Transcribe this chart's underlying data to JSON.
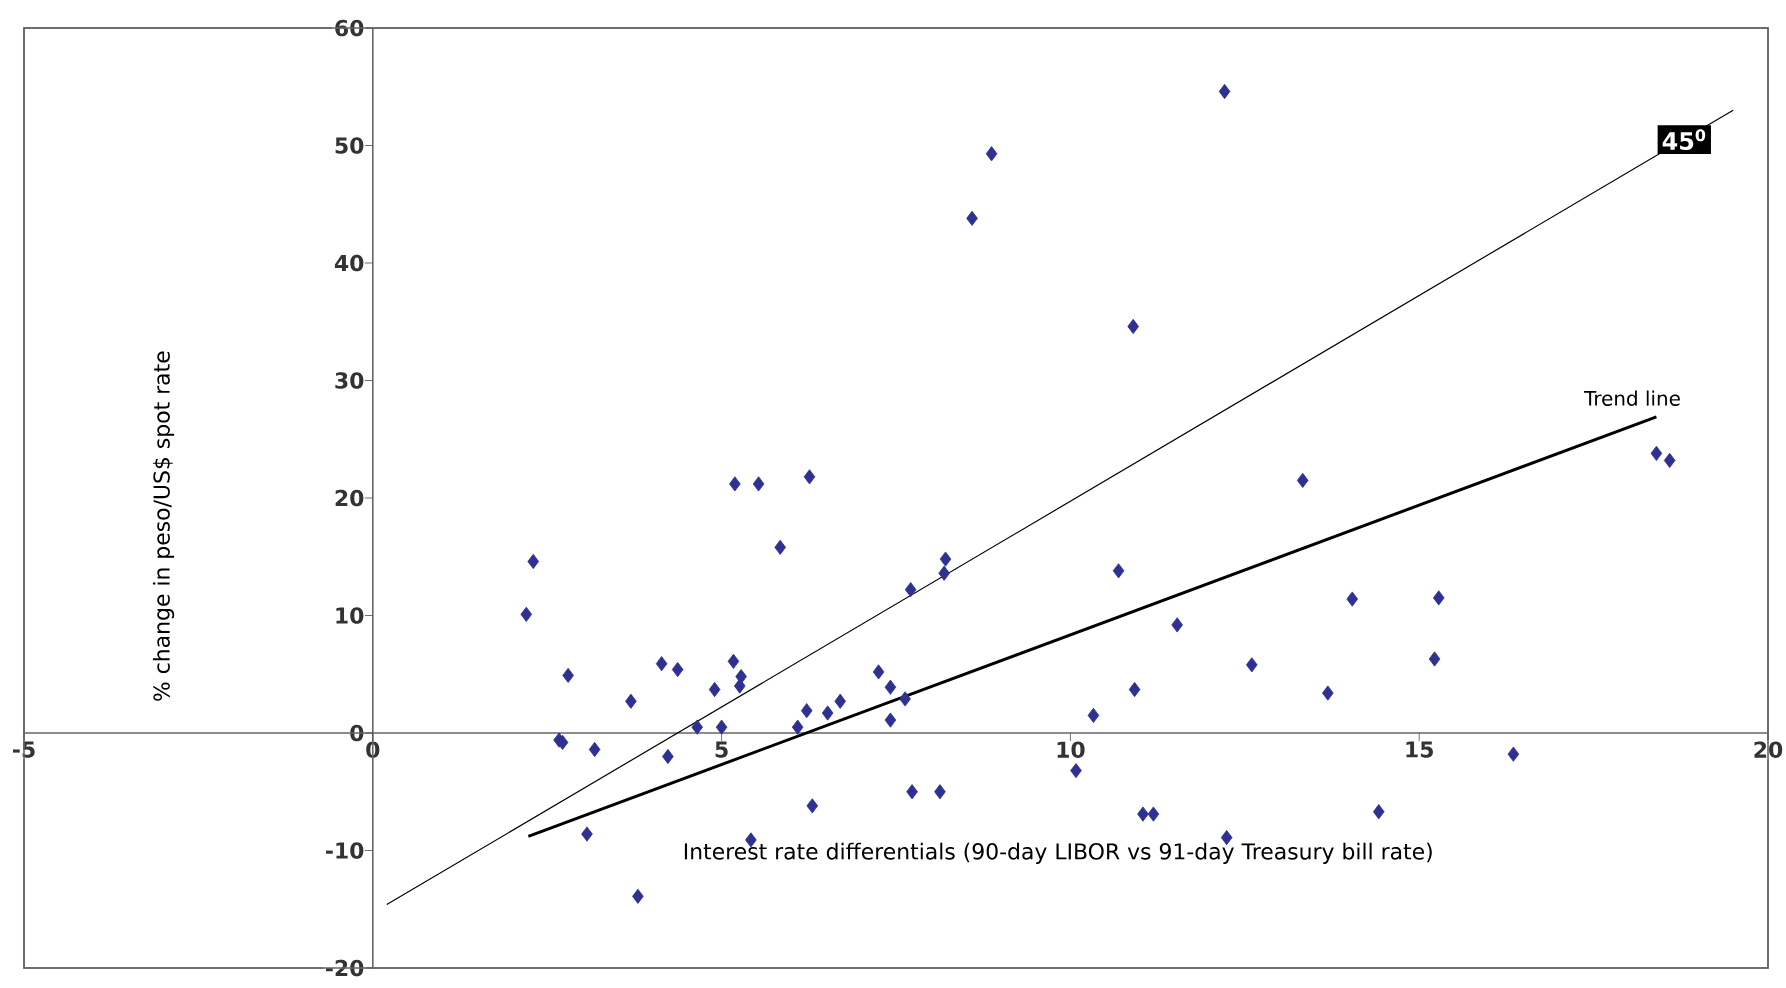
{
  "chart_data": {
    "type": "scatter",
    "xlabel": "Interest rate differentials (90-day LIBOR vs 91-day Treasury bill rate)",
    "ylabel": "% change in peso/US$ spot rate",
    "xlim": [
      -5,
      20
    ],
    "ylim": [
      -20,
      60
    ],
    "xticks": [
      -5,
      0,
      5,
      10,
      15,
      20
    ],
    "yticks": [
      -20,
      -10,
      0,
      10,
      20,
      30,
      40,
      50,
      60
    ],
    "grid": false,
    "series": [
      {
        "marker": "diamond",
        "color": "#2e3192",
        "x": [
          2.3,
          2.2,
          2.8,
          2.67,
          2.72,
          3.18,
          3.07,
          3.7,
          3.8,
          4.14,
          4.37,
          4.23,
          4.65,
          4.9,
          5.0,
          5.19,
          5.53,
          6.26,
          5.84,
          5.17,
          5.28,
          5.26,
          5.42,
          6.3,
          6.09,
          6.22,
          6.52,
          6.7,
          7.25,
          7.42,
          7.63,
          7.42,
          7.71,
          8.21,
          8.19,
          7.73,
          8.13,
          10.08,
          12.21,
          8.87,
          8.59,
          10.9,
          18.4,
          18.59,
          13.33,
          10.69,
          11.53,
          14.04,
          15.28,
          15.22,
          12.6,
          10.92,
          13.69,
          10.33,
          16.35,
          11.04,
          11.19,
          14.42,
          12.24
        ],
        "values": [
          14.6,
          10.1,
          4.9,
          -0.6,
          -0.8,
          -1.4,
          -8.6,
          2.7,
          -13.9,
          5.9,
          5.4,
          -2.0,
          0.5,
          3.7,
          0.5,
          21.2,
          21.2,
          21.8,
          15.8,
          6.1,
          4.8,
          4.0,
          -9.1,
          -6.2,
          0.5,
          1.9,
          1.7,
          2.7,
          5.2,
          3.9,
          2.9,
          1.1,
          12.2,
          14.8,
          13.6,
          -5.0,
          -5.0,
          -3.2,
          54.6,
          49.3,
          43.8,
          34.6,
          23.8,
          23.2,
          21.5,
          13.8,
          9.2,
          11.4,
          11.5,
          6.3,
          5.8,
          3.7,
          3.4,
          1.5,
          -1.8,
          -6.9,
          -6.9,
          -6.7,
          -8.9
        ]
      },
      {
        "type": "line",
        "color": "#000000",
        "x": [
          2.23,
          18.4
        ],
        "values": [
          -8.8,
          26.9
        ]
      },
      {
        "type": "line",
        "color": "#000000",
        "x": [
          0.2,
          19.5
        ],
        "values": [
          -14.6,
          53
        ]
      }
    ],
    "annotations": [
      {
        "text": "Trend line",
        "x": 18.4,
        "y": 26.9
      },
      {
        "text": "45$^{0}$",
        "x": 18.8,
        "y": 50.5
      }
    ]
  }
}
